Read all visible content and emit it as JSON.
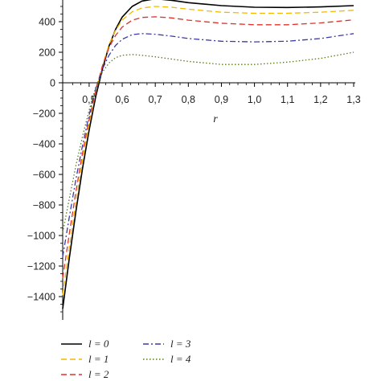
{
  "chart_data": {
    "type": "line",
    "title": "",
    "xlabel": "r",
    "ylabel": "",
    "xlim": [
      0.42,
      1.3
    ],
    "ylim": [
      -1520,
      560
    ],
    "x_ticks": [
      0.5,
      0.6,
      0.7,
      0.8,
      0.9,
      1.0,
      1.1,
      1.2,
      1.3
    ],
    "x_tick_labels": [
      "0,5",
      "0,6",
      "0,7",
      "0,8",
      "0,9",
      "1,0",
      "1,1",
      "1,2",
      "1,3"
    ],
    "y_ticks": [
      400,
      200,
      0,
      -200,
      -400,
      -600,
      -800,
      -1000,
      -1200,
      -1400
    ],
    "y_tick_labels": [
      "400",
      "200",
      "0",
      "−200",
      "−400",
      "−600",
      "−800",
      "−1000",
      "−1200",
      "−1400"
    ],
    "grid": false,
    "legend_position": "bottom",
    "series": [
      {
        "name": "l = 0",
        "color": "#000000",
        "style": "solid",
        "x": [
          0.42,
          0.44,
          0.46,
          0.48,
          0.5,
          0.52,
          0.54,
          0.56,
          0.58,
          0.6,
          0.63,
          0.66,
          0.7,
          0.75,
          0.8,
          0.9,
          1.0,
          1.1,
          1.2,
          1.3
        ],
        "y": [
          -1480,
          -1150,
          -840,
          -560,
          -310,
          -90,
          90,
          240,
          350,
          430,
          500,
          535,
          550,
          540,
          525,
          505,
          495,
          493,
          497,
          505
        ]
      },
      {
        "name": "l = 1",
        "color": "#f2b800",
        "style": "dashed",
        "x": [
          0.42,
          0.44,
          0.46,
          0.48,
          0.5,
          0.52,
          0.54,
          0.56,
          0.58,
          0.6,
          0.63,
          0.66,
          0.7,
          0.75,
          0.8,
          0.9,
          1.0,
          1.1,
          1.2,
          1.3
        ],
        "y": [
          -1390,
          -1080,
          -780,
          -510,
          -270,
          -60,
          110,
          250,
          345,
          410,
          465,
          490,
          500,
          495,
          482,
          462,
          455,
          455,
          462,
          475
        ]
      },
      {
        "name": "l = 2",
        "color": "#e0302a",
        "style": "dashed",
        "x": [
          0.42,
          0.44,
          0.46,
          0.48,
          0.5,
          0.52,
          0.54,
          0.56,
          0.58,
          0.6,
          0.63,
          0.66,
          0.7,
          0.75,
          0.8,
          0.9,
          1.0,
          1.1,
          1.2,
          1.3
        ],
        "y": [
          -1280,
          -990,
          -710,
          -460,
          -240,
          -50,
          110,
          230,
          310,
          365,
          410,
          428,
          432,
          425,
          410,
          390,
          380,
          380,
          392,
          412
        ]
      },
      {
        "name": "l = 3",
        "color": "#3a3aa8",
        "style": "dashdot",
        "x": [
          0.42,
          0.44,
          0.46,
          0.48,
          0.5,
          0.52,
          0.54,
          0.56,
          0.58,
          0.6,
          0.63,
          0.66,
          0.7,
          0.75,
          0.8,
          0.9,
          1.0,
          1.1,
          1.2,
          1.3
        ],
        "y": [
          -1140,
          -880,
          -630,
          -410,
          -210,
          -40,
          90,
          180,
          245,
          285,
          315,
          322,
          318,
          305,
          290,
          272,
          268,
          272,
          290,
          322
        ]
      },
      {
        "name": "l = 4",
        "color": "#5a7a1a",
        "style": "dotted",
        "x": [
          0.42,
          0.44,
          0.46,
          0.48,
          0.5,
          0.52,
          0.54,
          0.56,
          0.58,
          0.6,
          0.63,
          0.66,
          0.7,
          0.75,
          0.8,
          0.9,
          1.0,
          1.1,
          1.2,
          1.3
        ],
        "y": [
          -980,
          -760,
          -540,
          -350,
          -180,
          -30,
          70,
          130,
          165,
          180,
          185,
          180,
          170,
          155,
          140,
          120,
          120,
          135,
          160,
          200
        ]
      }
    ]
  }
}
